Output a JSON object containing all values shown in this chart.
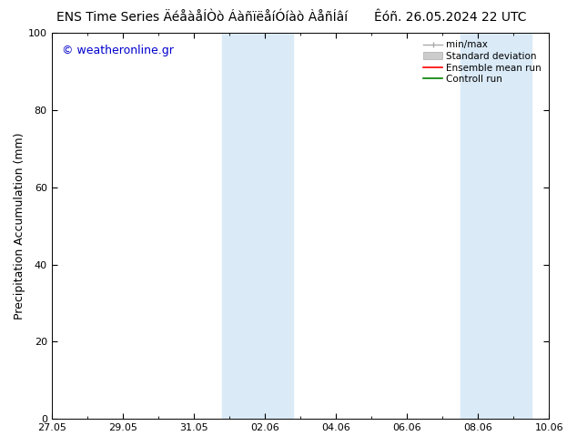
{
  "title": "ENS Time Series ÄéåàåÍÒò ÁàñïëåíÓíàò ÀåñÍâí",
  "title_right": "Êóñ. 26.05.2024 22 UTC",
  "ylabel": "Precipitation Accumulation (mm)",
  "watermark": "© weatheronline.gr",
  "ylim": [
    0,
    100
  ],
  "yticks": [
    0,
    20,
    40,
    60,
    80,
    100
  ],
  "xlim": [
    0,
    14
  ],
  "xtick_labels": [
    "27.05",
    "29.05",
    "31.05",
    "02.06",
    "04.06",
    "06.06",
    "08.06",
    "10.06"
  ],
  "xtick_positions": [
    0,
    2,
    4,
    6,
    8,
    10,
    12,
    14
  ],
  "shaded_regions": [
    [
      4.8,
      6.0
    ],
    [
      6.0,
      6.8
    ],
    [
      11.5,
      12.5
    ],
    [
      12.5,
      13.5
    ]
  ],
  "shaded_color": "#daeaf7",
  "legend_labels": [
    "min/max",
    "Standard deviation",
    "Ensemble mean run",
    "Controll run"
  ],
  "legend_colors": [
    "#aaaaaa",
    "#cccccc",
    "#ff0000",
    "#008000"
  ],
  "background_color": "#ffffff",
  "title_fontsize": 10,
  "tick_fontsize": 8,
  "ylabel_fontsize": 9,
  "watermark_color": "#0000cc",
  "watermark_fontsize": 9,
  "legend_fontsize": 7.5
}
